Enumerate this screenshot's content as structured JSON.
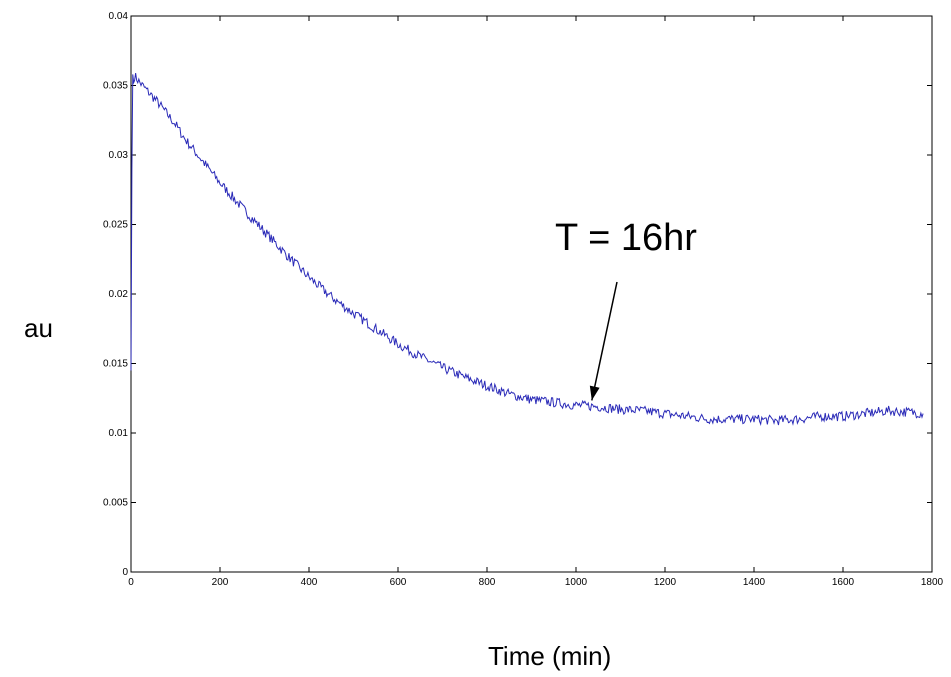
{
  "chart_data": {
    "type": "line",
    "title": "",
    "xlabel": "Time (min)",
    "ylabel": "au",
    "xlim": [
      0,
      1800
    ],
    "ylim": [
      0,
      0.04
    ],
    "x_ticks": [
      0,
      200,
      400,
      600,
      800,
      1000,
      1200,
      1400,
      1600,
      1800
    ],
    "x_tick_labels": [
      "0",
      "200",
      "400",
      "600",
      "800",
      "1000",
      "1200",
      "1400",
      "1600",
      "1800"
    ],
    "y_ticks": [
      0,
      0.005,
      0.01,
      0.015,
      0.02,
      0.025,
      0.03,
      0.035,
      0.04
    ],
    "y_tick_labels": [
      "0",
      "0.005",
      "0.01",
      "0.015",
      "0.02",
      "0.025",
      "0.03",
      "0.035",
      "0.04"
    ],
    "grid": false,
    "line_color": "#2b2bb8",
    "series": [
      {
        "x": [
          0,
          2,
          4,
          6,
          8,
          20,
          40,
          60,
          80,
          100,
          120,
          150,
          180,
          200,
          250,
          300,
          350,
          400,
          450,
          500,
          550,
          600,
          650,
          700,
          750,
          800,
          850,
          900,
          950,
          1000,
          1050,
          1100,
          1150,
          1200,
          1250,
          1300,
          1350,
          1400,
          1450,
          1500,
          1550,
          1600,
          1650,
          1700,
          1750,
          1780
        ],
        "y": [
          0.0145,
          0.029,
          0.0358,
          0.0352,
          0.0357,
          0.0352,
          0.0345,
          0.0338,
          0.033,
          0.0322,
          0.0312,
          0.03,
          0.0288,
          0.028,
          0.0262,
          0.0245,
          0.0228,
          0.0212,
          0.0198,
          0.0186,
          0.0175,
          0.0164,
          0.0155,
          0.0147,
          0.014,
          0.0134,
          0.0128,
          0.0124,
          0.0122,
          0.012,
          0.0119,
          0.0117,
          0.0116,
          0.0114,
          0.0112,
          0.011,
          0.011,
          0.011,
          0.0109,
          0.011,
          0.0112,
          0.0112,
          0.0114,
          0.0116,
          0.0115,
          0.0114
        ]
      }
    ],
    "annotations": [
      {
        "text": "T = 16hr",
        "arrow_to": [
          1040,
          0.0122
        ]
      }
    ]
  }
}
